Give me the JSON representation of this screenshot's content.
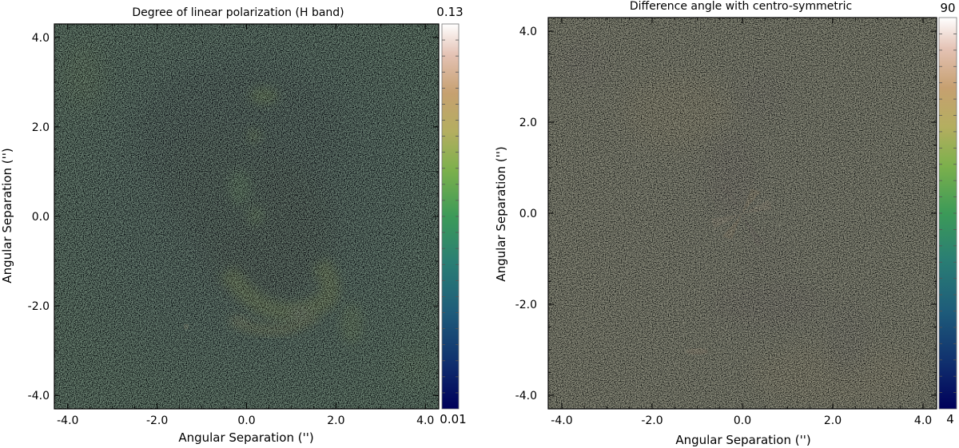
{
  "chart_data": [
    {
      "type": "heatmap",
      "title": "Degree of linear polarization (H band)",
      "xlabel": "Angular Separation ('')",
      "ylabel": "Angular Separation ('')",
      "xlim": [
        -4.3,
        4.3
      ],
      "ylim": [
        -4.3,
        4.3
      ],
      "xticks": [
        -4.0,
        -2.0,
        0.0,
        2.0,
        4.0
      ],
      "yticks": [
        -4.0,
        -2.0,
        0.0,
        2.0,
        4.0
      ],
      "xtick_labels": [
        "-4.0",
        "-2.0",
        "0.0",
        "2.0",
        "4.0"
      ],
      "ytick_labels": [
        "-4.0",
        "-2.0",
        "0.0",
        "2.0",
        "4.0"
      ],
      "colorbar": {
        "min": 0.01,
        "max": 0.13,
        "min_label": "0.01",
        "max_label": "0.13"
      },
      "colormap": "gist_earth"
    },
    {
      "type": "heatmap",
      "title": "Difference angle with centro-symmetric",
      "xlabel": "Angular Separation ('')",
      "ylabel": "Angular Separation ('')",
      "xlim": [
        -4.3,
        4.3
      ],
      "ylim": [
        -4.3,
        4.3
      ],
      "xticks": [
        -4.0,
        -2.0,
        0.0,
        2.0,
        4.0
      ],
      "yticks": [
        -4.0,
        -2.0,
        0.0,
        2.0,
        4.0
      ],
      "xtick_labels": [
        "-4.0",
        "-2.0",
        "0.0",
        "2.0",
        "4.0"
      ],
      "ytick_labels": [
        "4.0",
        "2.0",
        "0.0",
        "-2.0",
        "-4.0"
      ],
      "colorbar": {
        "min": 4,
        "max": 90,
        "min_label": "4",
        "max_label": "90"
      },
      "colormap": "gist_earth"
    }
  ]
}
